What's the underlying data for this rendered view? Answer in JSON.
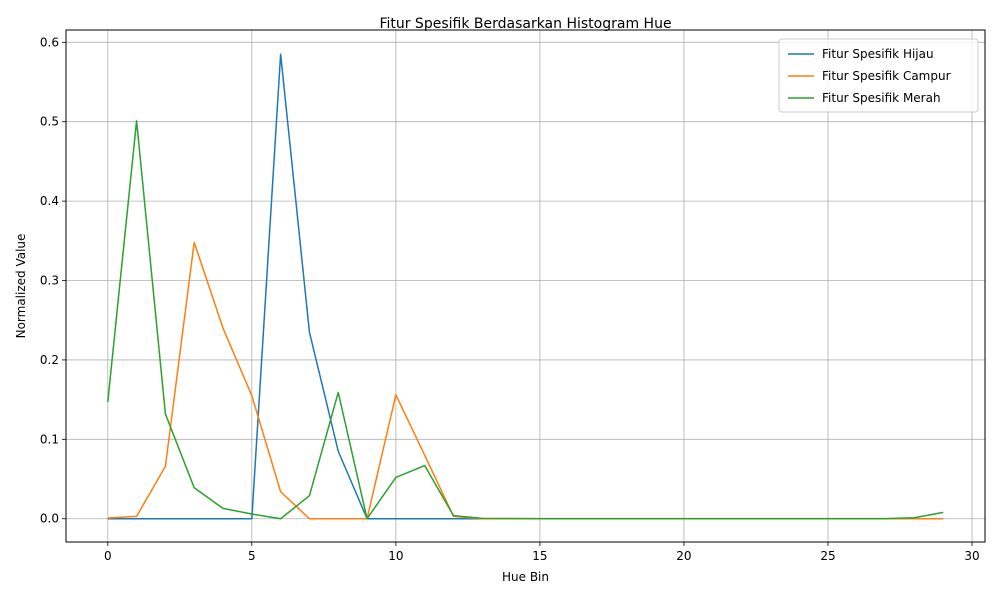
{
  "chart_data": {
    "type": "line",
    "title": "Fitur Spesifik Berdasarkan Histogram Hue",
    "xlabel": "Hue Bin",
    "ylabel": "Normalized Value",
    "xlim": [
      -1.45,
      30.45
    ],
    "ylim": [
      -0.0293,
      0.6155
    ],
    "xticks": [
      0,
      5,
      10,
      15,
      20,
      25,
      30
    ],
    "yticks": [
      0.0,
      0.1,
      0.2,
      0.3,
      0.4,
      0.5,
      0.6
    ],
    "xtick_labels": [
      "0",
      "5",
      "10",
      "15",
      "20",
      "25",
      "30"
    ],
    "ytick_labels": [
      "0.0",
      "0.1",
      "0.2",
      "0.3",
      "0.4",
      "0.5",
      "0.6"
    ],
    "grid": true,
    "legend_position": "top-right",
    "x": [
      0,
      1,
      2,
      3,
      4,
      5,
      6,
      7,
      8,
      9,
      10,
      11,
      12,
      13,
      14,
      15,
      16,
      17,
      18,
      19,
      20,
      21,
      22,
      23,
      24,
      25,
      26,
      27,
      28,
      29
    ],
    "series": [
      {
        "name": "Fitur Spesifik Hijau",
        "color": "#1f77b4",
        "values": [
          0,
          0,
          0,
          0,
          0,
          0,
          0.585,
          0.235,
          0.085,
          0,
          0,
          0,
          0,
          0,
          0,
          0,
          0,
          0,
          0,
          0,
          0,
          0,
          0,
          0,
          0,
          0,
          0,
          0,
          0,
          0
        ]
      },
      {
        "name": "Fitur Spesifik Campur",
        "color": "#ff7f0e",
        "values": [
          0.001,
          0.003,
          0.066,
          0.348,
          0.24,
          0.155,
          0.034,
          0,
          0,
          0,
          0.156,
          0.08,
          0.003,
          0,
          0,
          0,
          0,
          0,
          0,
          0,
          0,
          0,
          0,
          0,
          0,
          0,
          0,
          0,
          0,
          0
        ]
      },
      {
        "name": "Fitur Spesifik Merah",
        "color": "#2ca02c",
        "values": [
          0.147,
          0.501,
          0.132,
          0.039,
          0.013,
          0.006,
          0,
          0.029,
          0.159,
          0,
          0.052,
          0.067,
          0.004,
          0.0005,
          0.0003,
          0.0002,
          0.0002,
          0.0002,
          0.0002,
          0.0002,
          0.0002,
          0.0002,
          0.0002,
          0.0002,
          0.0002,
          0.0002,
          0.0002,
          0.0002,
          0.0012,
          0.008
        ]
      }
    ]
  }
}
